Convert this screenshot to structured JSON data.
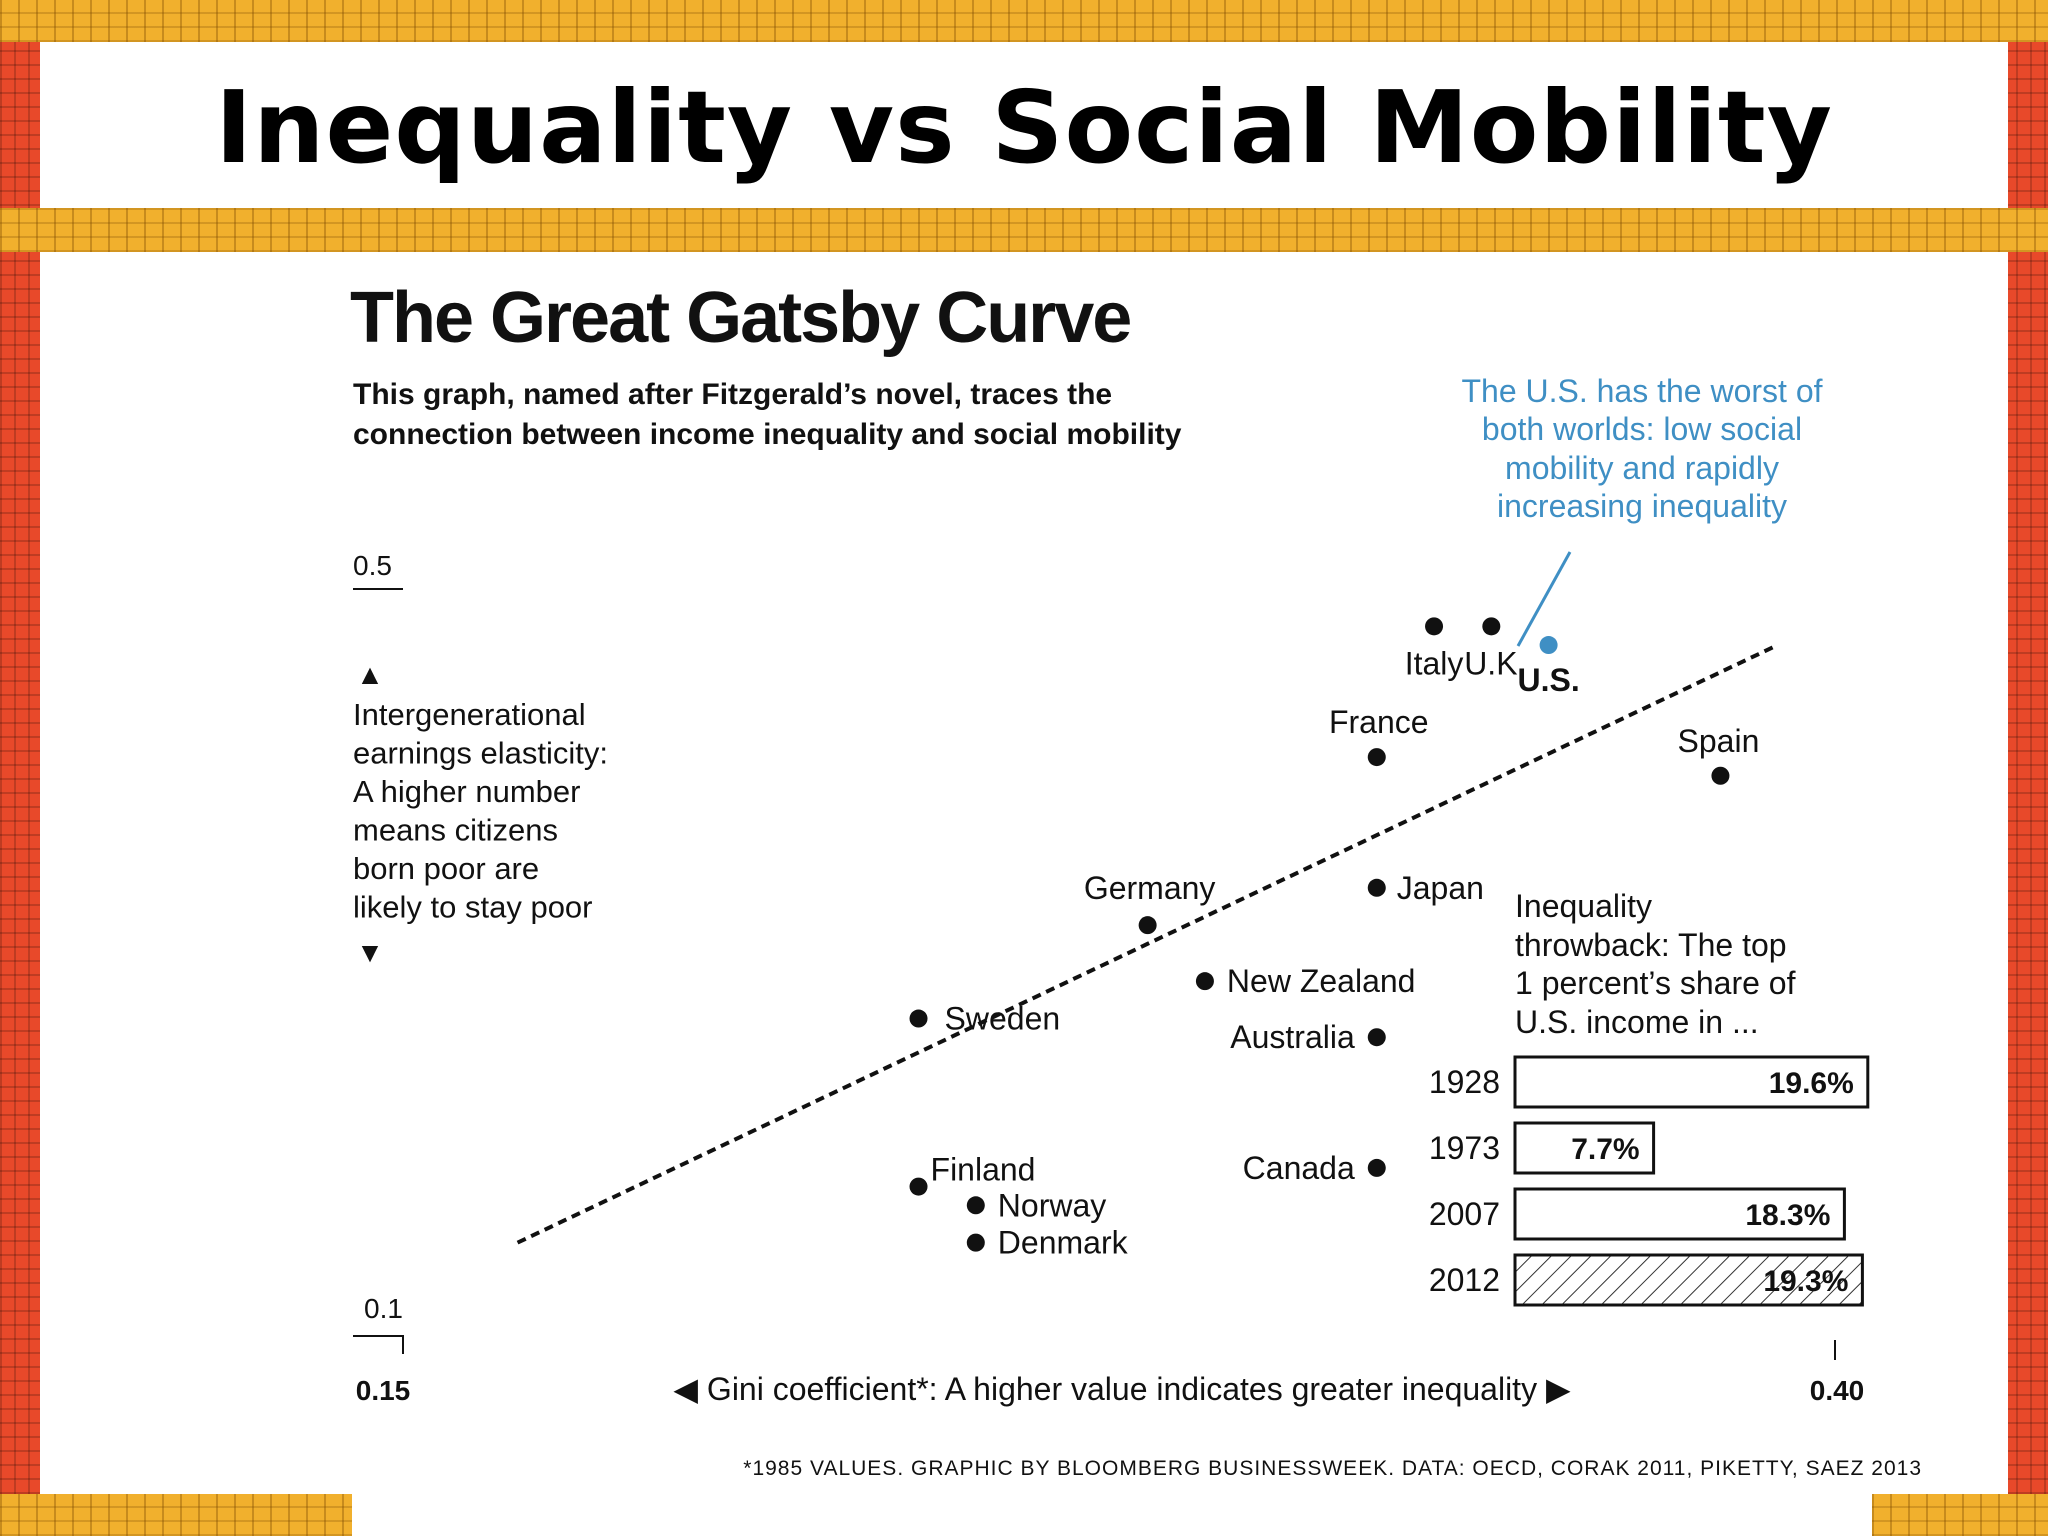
{
  "slide": {
    "title": "Inequality vs Social Mobility"
  },
  "colors": {
    "accent_blue": "#3f8fc4",
    "frame_red": "#e8492a",
    "frame_yellow": "#f1b02d"
  },
  "chart_data": {
    "type": "scatter",
    "title": "The Great Gatsby Curve",
    "subtitle_lines": [
      "This graph, named after Fitzgerald’s novel, traces the",
      "connection between income inequality and social mobility"
    ],
    "xlabel": "◀ Gini coefficient*: A higher value indicates greater inequality ▶",
    "ylabel_lines": [
      "Intergenerational",
      "earnings elasticity:",
      "A higher number",
      "means citizens",
      "born poor are",
      "likely to stay poor"
    ],
    "xlim": [
      0.15,
      0.4
    ],
    "ylim": [
      0.1,
      0.5
    ],
    "x_ticks": [
      {
        "value": 0.15,
        "label": "0.15"
      },
      {
        "value": 0.4,
        "label": "0.40"
      }
    ],
    "y_ticks": [
      {
        "value": 0.5,
        "label": "0.5"
      },
      {
        "value": 0.1,
        "label": "0.1"
      }
    ],
    "points": [
      {
        "label": "Italy",
        "x": 0.33,
        "y": 0.48
      },
      {
        "label": "U.K.",
        "x": 0.34,
        "y": 0.48
      },
      {
        "label": "U.S.",
        "x": 0.35,
        "y": 0.47,
        "highlight": true
      },
      {
        "label": "France",
        "x": 0.32,
        "y": 0.41
      },
      {
        "label": "Spain",
        "x": 0.38,
        "y": 0.4
      },
      {
        "label": "Japan",
        "x": 0.32,
        "y": 0.34
      },
      {
        "label": "Germany",
        "x": 0.28,
        "y": 0.32
      },
      {
        "label": "New Zealand",
        "x": 0.29,
        "y": 0.29
      },
      {
        "label": "Sweden",
        "x": 0.24,
        "y": 0.27
      },
      {
        "label": "Australia",
        "x": 0.32,
        "y": 0.26
      },
      {
        "label": "Canada",
        "x": 0.32,
        "y": 0.19
      },
      {
        "label": "Finland",
        "x": 0.24,
        "y": 0.18
      },
      {
        "label": "Norway",
        "x": 0.25,
        "y": 0.17
      },
      {
        "label": "Denmark",
        "x": 0.25,
        "y": 0.15
      }
    ],
    "trendline": {
      "from": {
        "x": 0.17,
        "y": 0.15
      },
      "to": {
        "x": 0.39,
        "y": 0.47
      }
    },
    "annotation_lines": [
      "The U.S. has the worst of",
      "both worlds: low social",
      "mobility and rapidly",
      "increasing inequality"
    ],
    "inset": {
      "title_lines": [
        "Inequality",
        "throwback: The top",
        "1 percent’s share of",
        "U.S. income in ..."
      ],
      "max_value": 20,
      "bars": [
        {
          "year": "1928",
          "value": 19.6,
          "label": "19.6%"
        },
        {
          "year": "1973",
          "value": 7.7,
          "label": "7.7%"
        },
        {
          "year": "2007",
          "value": 18.3,
          "label": "18.3%"
        },
        {
          "year": "2012",
          "value": 19.3,
          "label": "19.3%",
          "hatched": true
        }
      ]
    },
    "footnote": "*1985 VALUES. GRAPHIC BY BLOOMBERG BUSINESSWEEK. DATA: OECD, CORAK 2011, PIKETTY, SAEZ 2013",
    "grid": false,
    "legend": "none"
  }
}
